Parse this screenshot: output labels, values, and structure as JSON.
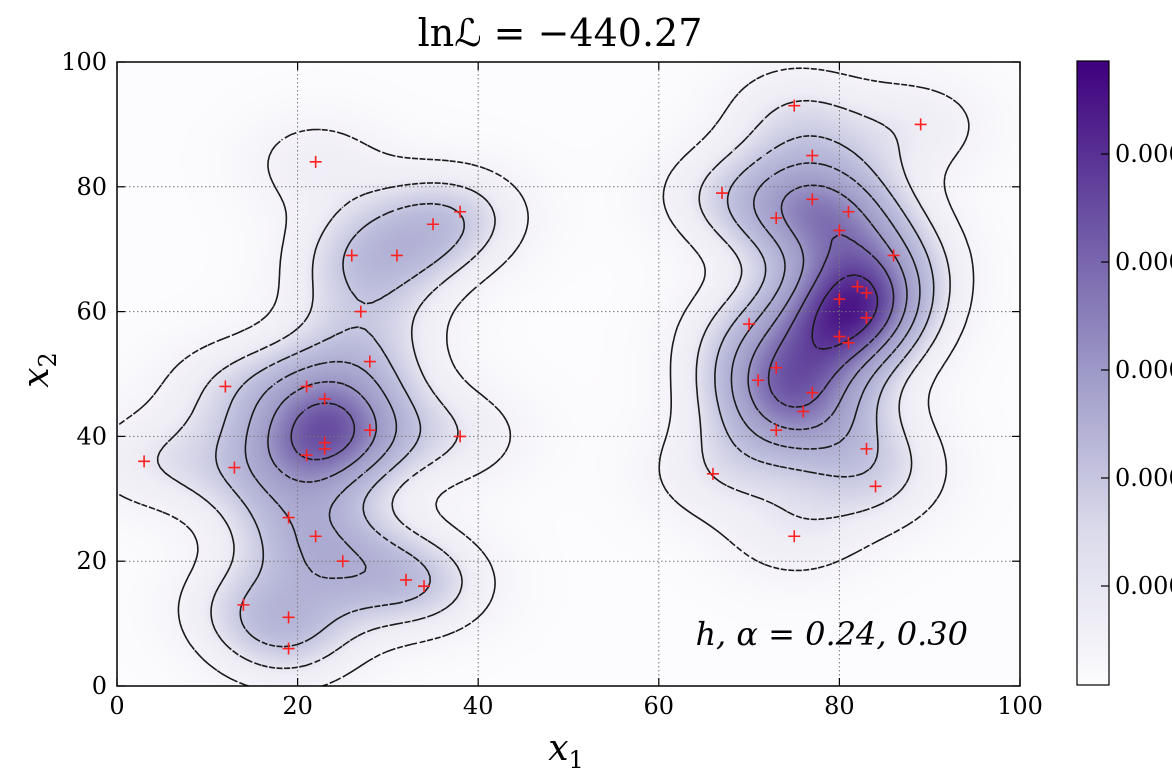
{
  "chart_data": {
    "type": "scatter",
    "title": "lnℒ = −440.27",
    "xlabel": "x1",
    "ylabel": "x2",
    "xlim": [
      0,
      100
    ],
    "ylim": [
      0,
      100
    ],
    "x_ticks": [
      0,
      20,
      40,
      60,
      80,
      100
    ],
    "y_ticks": [
      0,
      20,
      40,
      60,
      80,
      100
    ],
    "grid": true,
    "annotation": "h, α = 0.24, 0.30",
    "background": "kernel density estimate (Purples colormap) with dashed contour lines",
    "colorbar": {
      "tick_labels": [
        "0.000",
        "0.000",
        "0.000",
        "0.000",
        "0.000"
      ],
      "colormap": "Purples"
    },
    "colors": {
      "points": "#ff2020",
      "contour": "#1a1a1a",
      "dark": "#3f007d",
      "light": "#fcfbfd"
    },
    "points": [
      {
        "x": 3,
        "y": 36
      },
      {
        "x": 12,
        "y": 48
      },
      {
        "x": 13,
        "y": 35
      },
      {
        "x": 14,
        "y": 13
      },
      {
        "x": 19,
        "y": 11
      },
      {
        "x": 19,
        "y": 27
      },
      {
        "x": 19,
        "y": 6
      },
      {
        "x": 21,
        "y": 48
      },
      {
        "x": 21,
        "y": 37
      },
      {
        "x": 22,
        "y": 84
      },
      {
        "x": 23,
        "y": 46
      },
      {
        "x": 23,
        "y": 39
      },
      {
        "x": 23,
        "y": 38
      },
      {
        "x": 22,
        "y": 24
      },
      {
        "x": 25,
        "y": 20
      },
      {
        "x": 26,
        "y": 69
      },
      {
        "x": 27,
        "y": 60
      },
      {
        "x": 28,
        "y": 52
      },
      {
        "x": 28,
        "y": 41
      },
      {
        "x": 31,
        "y": 69
      },
      {
        "x": 32,
        "y": 17
      },
      {
        "x": 34,
        "y": 16
      },
      {
        "x": 35,
        "y": 74
      },
      {
        "x": 38,
        "y": 76
      },
      {
        "x": 38,
        "y": 40
      },
      {
        "x": 66,
        "y": 34
      },
      {
        "x": 67,
        "y": 79
      },
      {
        "x": 70,
        "y": 58
      },
      {
        "x": 71,
        "y": 49
      },
      {
        "x": 73,
        "y": 75
      },
      {
        "x": 73,
        "y": 41
      },
      {
        "x": 73,
        "y": 51
      },
      {
        "x": 75,
        "y": 93
      },
      {
        "x": 75,
        "y": 24
      },
      {
        "x": 76,
        "y": 44
      },
      {
        "x": 77,
        "y": 85
      },
      {
        "x": 77,
        "y": 78
      },
      {
        "x": 77,
        "y": 47
      },
      {
        "x": 80,
        "y": 73
      },
      {
        "x": 80,
        "y": 62
      },
      {
        "x": 80,
        "y": 56
      },
      {
        "x": 81,
        "y": 55
      },
      {
        "x": 81,
        "y": 76
      },
      {
        "x": 82,
        "y": 64
      },
      {
        "x": 83,
        "y": 63
      },
      {
        "x": 83,
        "y": 59
      },
      {
        "x": 83,
        "y": 38
      },
      {
        "x": 84,
        "y": 32
      },
      {
        "x": 86,
        "y": 69
      },
      {
        "x": 89,
        "y": 90
      }
    ]
  }
}
